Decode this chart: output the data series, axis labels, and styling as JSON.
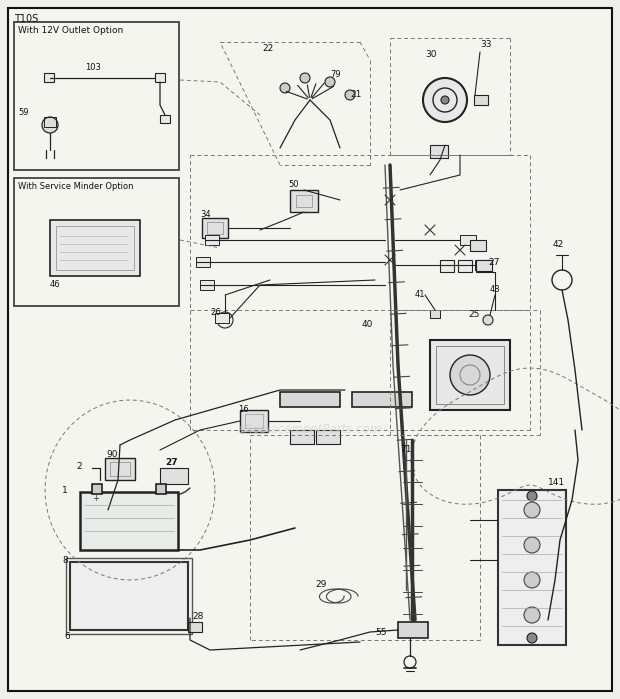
{
  "fig_width": 6.2,
  "fig_height": 6.99,
  "dpi": 100,
  "bg_color": "#f5f5f0",
  "border_color": "#111111",
  "line_color": "#222222",
  "dash_color": "#777777",
  "text_color": "#111111",
  "watermark": "eReplacementParts.com",
  "title": "T10S"
}
